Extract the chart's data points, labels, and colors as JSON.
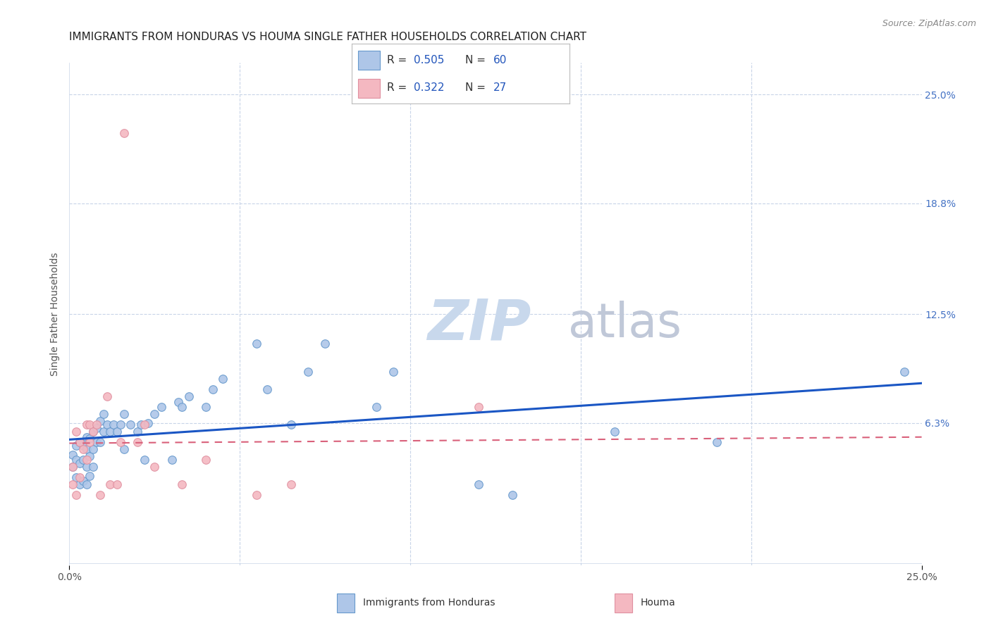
{
  "title": "IMMIGRANTS FROM HONDURAS VS HOUMA SINGLE FATHER HOUSEHOLDS CORRELATION CHART",
  "source": "Source: ZipAtlas.com",
  "ylabel": "Single Father Households",
  "xlim": [
    0,
    0.25
  ],
  "ylim": [
    -0.018,
    0.268
  ],
  "ytick_values": [
    0.0,
    0.063,
    0.125,
    0.188,
    0.25
  ],
  "xtick_values": [
    0.0,
    0.25
  ],
  "legend1_color": "#aec6e8",
  "legend2_color": "#f4b8c1",
  "blue_line_color": "#1a56c4",
  "pink_line_color": "#d9607a",
  "scatter_blue_color": "#aec6e8",
  "scatter_pink_color": "#f4b8c1",
  "blue_scatter_edge": "#6699cc",
  "pink_scatter_edge": "#e090a0",
  "grid_color": "#c8d4e8",
  "background_color": "#ffffff",
  "right_tick_color": "#4472c4",
  "title_fontsize": 11,
  "axis_label_fontsize": 10,
  "tick_fontsize": 10,
  "blue_x": [
    0.001,
    0.001,
    0.002,
    0.002,
    0.002,
    0.003,
    0.003,
    0.003,
    0.004,
    0.004,
    0.004,
    0.005,
    0.005,
    0.005,
    0.005,
    0.006,
    0.006,
    0.006,
    0.007,
    0.007,
    0.007,
    0.008,
    0.008,
    0.009,
    0.009,
    0.01,
    0.01,
    0.011,
    0.012,
    0.013,
    0.014,
    0.015,
    0.016,
    0.016,
    0.018,
    0.02,
    0.021,
    0.022,
    0.023,
    0.025,
    0.027,
    0.03,
    0.032,
    0.033,
    0.035,
    0.04,
    0.042,
    0.045,
    0.055,
    0.058,
    0.065,
    0.07,
    0.075,
    0.09,
    0.095,
    0.12,
    0.13,
    0.16,
    0.19,
    0.245
  ],
  "blue_y": [
    0.038,
    0.045,
    0.032,
    0.042,
    0.05,
    0.028,
    0.04,
    0.052,
    0.03,
    0.042,
    0.05,
    0.028,
    0.038,
    0.048,
    0.055,
    0.033,
    0.044,
    0.054,
    0.038,
    0.048,
    0.058,
    0.052,
    0.06,
    0.052,
    0.064,
    0.058,
    0.068,
    0.062,
    0.058,
    0.062,
    0.058,
    0.062,
    0.068,
    0.048,
    0.062,
    0.058,
    0.062,
    0.042,
    0.063,
    0.068,
    0.072,
    0.042,
    0.075,
    0.072,
    0.078,
    0.072,
    0.082,
    0.088,
    0.108,
    0.082,
    0.062,
    0.092,
    0.108,
    0.072,
    0.092,
    0.028,
    0.022,
    0.058,
    0.052,
    0.092
  ],
  "pink_x": [
    0.001,
    0.001,
    0.002,
    0.002,
    0.003,
    0.003,
    0.004,
    0.005,
    0.005,
    0.006,
    0.006,
    0.007,
    0.008,
    0.009,
    0.011,
    0.012,
    0.014,
    0.015,
    0.016,
    0.02,
    0.022,
    0.025,
    0.033,
    0.04,
    0.055,
    0.065,
    0.12
  ],
  "pink_y": [
    0.028,
    0.038,
    0.022,
    0.058,
    0.032,
    0.052,
    0.048,
    0.062,
    0.042,
    0.052,
    0.062,
    0.058,
    0.062,
    0.022,
    0.078,
    0.028,
    0.028,
    0.052,
    0.228,
    0.052,
    0.062,
    0.038,
    0.028,
    0.042,
    0.022,
    0.028,
    0.072
  ],
  "watermark_zip_color": "#c8d8ec",
  "watermark_atlas_color": "#c0c8d8"
}
